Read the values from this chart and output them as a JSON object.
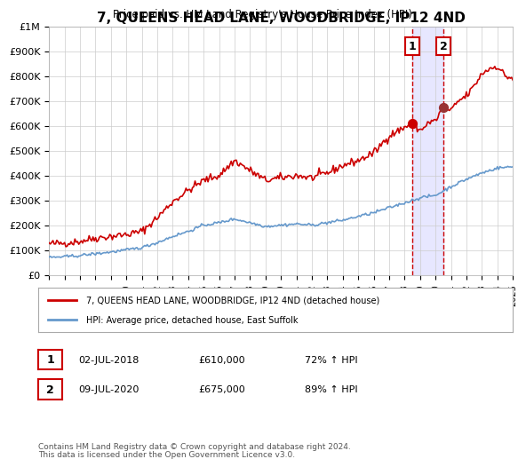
{
  "title": "7, QUEENS HEAD LANE, WOODBRIDGE, IP12 4ND",
  "subtitle": "Price paid vs. HM Land Registry's House Price Index (HPI)",
  "red_label": "7, QUEENS HEAD LANE, WOODBRIDGE, IP12 4ND (detached house)",
  "blue_label": "HPI: Average price, detached house, East Suffolk",
  "annotation1_label": "1",
  "annotation1_date": "02-JUL-2018",
  "annotation1_price": "£610,000",
  "annotation1_hpi": "72% ↑ HPI",
  "annotation1_year": 2018.5,
  "annotation1_value": 610000,
  "annotation2_label": "2",
  "annotation2_date": "09-JUL-2020",
  "annotation2_price": "£675,000",
  "annotation2_hpi": "89% ↑ HPI",
  "annotation2_year": 2020.5,
  "annotation2_value": 675000,
  "footer1": "Contains HM Land Registry data © Crown copyright and database right 2024.",
  "footer2": "This data is licensed under the Open Government Licence v3.0.",
  "xlim": [
    1995,
    2025
  ],
  "ylim": [
    0,
    1000000
  ],
  "yticks": [
    0,
    100000,
    200000,
    300000,
    400000,
    500000,
    600000,
    700000,
    800000,
    900000,
    1000000
  ],
  "ytick_labels": [
    "£0",
    "£100K",
    "£200K",
    "£300K",
    "£400K",
    "£500K",
    "£600K",
    "£700K",
    "£800K",
    "£900K",
    "£1M"
  ],
  "xticks": [
    1995,
    1996,
    1997,
    1998,
    1999,
    2000,
    2001,
    2002,
    2003,
    2004,
    2005,
    2006,
    2007,
    2008,
    2009,
    2010,
    2011,
    2012,
    2013,
    2014,
    2015,
    2016,
    2017,
    2018,
    2019,
    2020,
    2021,
    2022,
    2023,
    2024,
    2025
  ],
  "red_color": "#cc0000",
  "blue_color": "#6699cc",
  "shade_color": "#ddddff",
  "grid_color": "#cccccc",
  "background_color": "#ffffff",
  "marker1_color": "#cc0000",
  "marker2_color": "#993333"
}
